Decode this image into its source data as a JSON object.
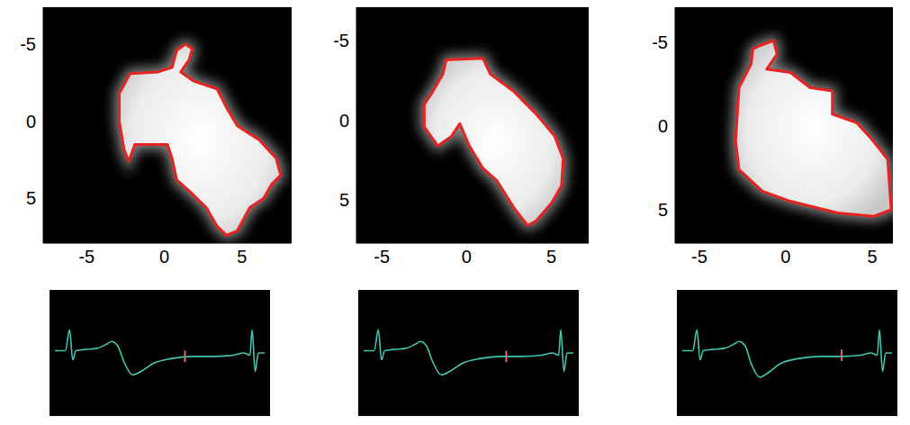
{
  "chart_data": [
    {
      "type": "contour_map",
      "xlim": [
        -7.8,
        8.2
      ],
      "ylim": [
        -7.4,
        7.9
      ],
      "xticks": [
        -5,
        0,
        5
      ],
      "yticks": [
        -5,
        0,
        5
      ],
      "color": "#e8231f",
      "contour": {
        "x": [
          1.35,
          1.8,
          1.6,
          1.06,
          1.9,
          3.4,
          4.0,
          4.7,
          6.1,
          7.2,
          7.5,
          6.9,
          6.4,
          5.5,
          4.7,
          4.0,
          3.4,
          2.7,
          1.8,
          0.8,
          0.5,
          0.2,
          -1.9,
          -2.3,
          -2.6,
          -2.9,
          -2.9,
          -2.2,
          -0.4,
          0.5,
          0.8
        ],
        "y": [
          -5.0,
          -4.7,
          -4.0,
          -3.2,
          -2.6,
          -2.1,
          -0.9,
          0.3,
          1.2,
          2.4,
          3.5,
          4.1,
          5.0,
          5.6,
          7.1,
          7.4,
          6.8,
          5.6,
          4.7,
          3.8,
          2.4,
          1.5,
          1.5,
          2.6,
          1.8,
          0.0,
          -1.8,
          -3.1,
          -3.2,
          -3.5,
          -4.6
        ]
      }
    },
    {
      "type": "contour_map",
      "xlim": [
        -6.5,
        7.2
      ],
      "ylim": [
        -7.1,
        7.7
      ],
      "xticks": [
        -5,
        0,
        5
      ],
      "yticks": [
        -5,
        0,
        5
      ],
      "color": "#e8231f",
      "contour": {
        "x": [
          -1.2,
          0.96,
          1.4,
          2.8,
          4.1,
          5.2,
          5.7,
          5.6,
          5.0,
          4.1,
          3.6,
          2.8,
          1.8,
          0.96,
          0.16,
          -0.4,
          -0.9,
          -1.7,
          -2.5,
          -2.5,
          -2.0,
          -1.4
        ],
        "y": [
          -3.8,
          -3.9,
          -2.9,
          -1.8,
          -0.4,
          1.0,
          2.4,
          4.1,
          5.2,
          6.3,
          6.6,
          5.5,
          3.8,
          3.0,
          1.6,
          0.2,
          1.0,
          1.6,
          0.4,
          -1.0,
          -1.8,
          -2.9
        ]
      }
    },
    {
      "type": "contour_map",
      "xlim": [
        -6.4,
        6.2
      ],
      "ylim": [
        -7.1,
        7.0
      ],
      "xticks": [
        -5,
        0,
        5
      ],
      "yticks": [
        -5,
        0,
        5
      ],
      "color": "#e8231f",
      "contour": {
        "x": [
          -1.5,
          -0.7,
          -0.5,
          -1.1,
          0.27,
          1.4,
          2.7,
          2.7,
          4.1,
          4.9,
          5.9,
          6.1,
          5.1,
          3.0,
          0.27,
          -1.35,
          -2.7,
          -2.9,
          -2.7,
          -2.0,
          -1.9
        ],
        "y": [
          -4.8,
          -5.1,
          -4.3,
          -3.4,
          -3.2,
          -2.3,
          -2.1,
          -0.7,
          -0.2,
          0.7,
          2.0,
          5.0,
          5.4,
          5.2,
          4.5,
          3.9,
          2.6,
          0.9,
          -2.3,
          -3.7,
          -4.6
        ]
      }
    },
    {
      "type": "line",
      "tick_labels": false,
      "xlim": [
        0,
        100
      ],
      "ylim": [
        0,
        100
      ],
      "color": "#40c8b0",
      "x": [
        0,
        5,
        7,
        8.5,
        10,
        14,
        20,
        25,
        27,
        30,
        33,
        37,
        41,
        47,
        55,
        65,
        75,
        85,
        90,
        93,
        94,
        95.5,
        97,
        100
      ],
      "values": [
        52,
        52,
        70,
        44,
        52,
        53,
        54,
        58,
        60,
        56,
        42,
        31,
        34,
        41,
        45,
        47,
        47,
        48,
        50,
        48,
        70,
        34,
        50,
        50
      ],
      "event": {
        "x": 62,
        "y_range": [
          42,
          52
        ],
        "color": "#e06a6a"
      }
    },
    {
      "type": "line",
      "tick_labels": false,
      "xlim": [
        0,
        100
      ],
      "ylim": [
        0,
        100
      ],
      "color": "#40c8b0",
      "x": [
        0,
        5,
        7,
        8.5,
        10,
        14,
        20,
        25,
        27,
        30,
        33,
        37,
        41,
        47,
        55,
        65,
        75,
        85,
        90,
        93,
        94,
        95.5,
        97,
        100
      ],
      "values": [
        52,
        52,
        70,
        44,
        52,
        53,
        54,
        58,
        60,
        56,
        42,
        31,
        34,
        41,
        45,
        47,
        47,
        48,
        50,
        48,
        70,
        34,
        50,
        50
      ],
      "event": {
        "x": 68,
        "y_range": [
          42,
          52
        ],
        "color": "#e06a6a"
      }
    },
    {
      "type": "line",
      "tick_labels": false,
      "xlim": [
        0,
        100
      ],
      "ylim": [
        0,
        100
      ],
      "color": "#40c8b0",
      "x": [
        0,
        5,
        7,
        8.5,
        10,
        14,
        20,
        25,
        27,
        30,
        33,
        37,
        41,
        47,
        55,
        65,
        75,
        85,
        90,
        93,
        94,
        95.5,
        97,
        100
      ],
      "values": [
        52,
        52,
        70,
        44,
        52,
        53,
        54,
        58,
        60,
        56,
        40,
        29,
        33,
        41,
        45,
        47,
        47,
        48,
        50,
        48,
        70,
        34,
        50,
        50
      ],
      "event": {
        "x": 76,
        "y_range": [
          43,
          53
        ],
        "color": "#e06a6a"
      }
    }
  ]
}
